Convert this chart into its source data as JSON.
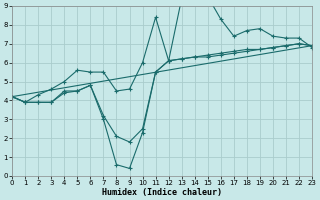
{
  "xlabel": "Humidex (Indice chaleur)",
  "bg_color": "#c8e8e8",
  "grid_color": "#aacccc",
  "line_color": "#1a6b6b",
  "xlim": [
    0,
    23
  ],
  "ylim": [
    0,
    9
  ],
  "xticks": [
    0,
    1,
    2,
    3,
    4,
    5,
    6,
    7,
    8,
    9,
    10,
    11,
    12,
    13,
    14,
    15,
    16,
    17,
    18,
    19,
    20,
    21,
    22,
    23
  ],
  "yticks": [
    0,
    1,
    2,
    3,
    4,
    5,
    6,
    7,
    8,
    9
  ],
  "curve1_x": [
    0,
    1,
    2,
    3,
    4,
    5,
    6,
    7,
    8,
    9,
    10,
    11,
    12,
    13,
    14,
    15,
    16,
    17,
    18,
    19,
    20,
    21,
    22,
    23
  ],
  "curve1_y": [
    4.2,
    3.9,
    3.9,
    3.9,
    4.5,
    4.5,
    4.8,
    3.0,
    0.6,
    0.4,
    2.3,
    5.5,
    6.1,
    9.4,
    9.2,
    9.5,
    8.3,
    7.4,
    7.7,
    7.8,
    7.4,
    7.3,
    7.3,
    6.8
  ],
  "curve2_x": [
    0,
    1,
    2,
    3,
    4,
    5,
    6,
    7,
    8,
    9,
    10,
    11,
    12,
    13,
    14,
    15,
    16,
    17,
    18,
    19,
    20,
    21,
    22,
    23
  ],
  "curve2_y": [
    4.2,
    3.9,
    4.3,
    4.6,
    5.0,
    5.6,
    5.5,
    5.5,
    4.5,
    4.6,
    6.0,
    8.4,
    6.1,
    6.2,
    6.3,
    6.4,
    6.5,
    6.6,
    6.7,
    6.7,
    6.8,
    6.9,
    7.0,
    6.9
  ],
  "curve3_x": [
    0,
    1,
    2,
    3,
    4,
    5,
    6,
    7,
    8,
    9,
    10,
    11,
    12,
    13,
    14,
    15,
    16,
    17,
    18,
    19,
    20,
    21,
    22,
    23
  ],
  "curve3_y": [
    4.2,
    3.9,
    3.9,
    3.9,
    4.4,
    4.5,
    4.8,
    3.2,
    2.1,
    1.8,
    2.5,
    5.5,
    6.1,
    6.2,
    6.3,
    6.3,
    6.4,
    6.5,
    6.6,
    6.7,
    6.8,
    6.9,
    7.0,
    6.9
  ],
  "line4_x": [
    0,
    23
  ],
  "line4_y": [
    4.2,
    6.9
  ]
}
